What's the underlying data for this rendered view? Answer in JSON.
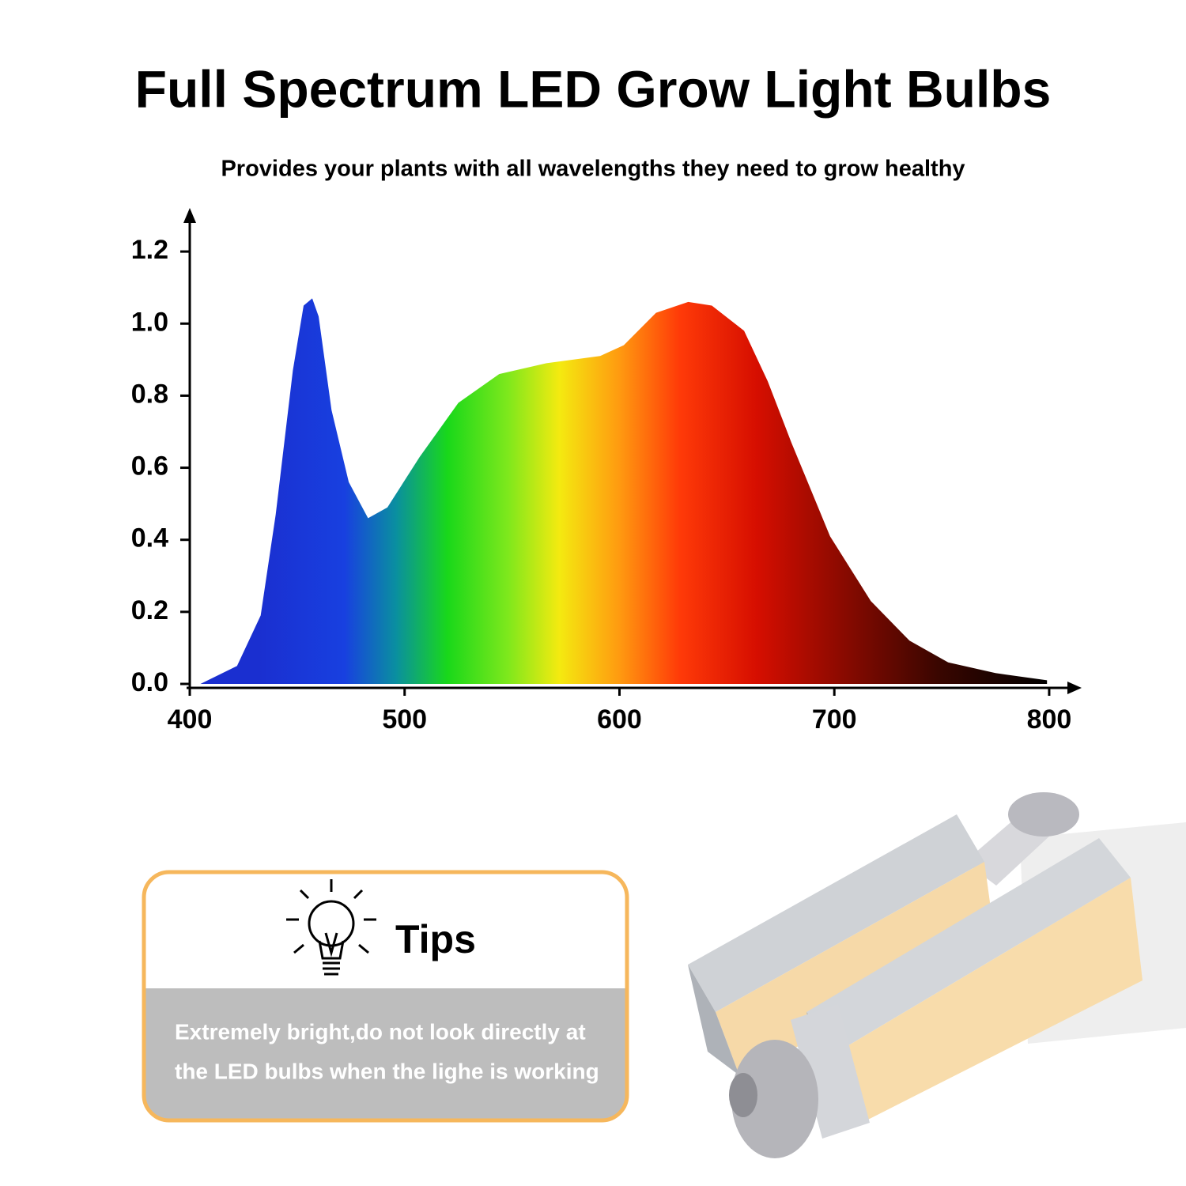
{
  "chart_data": {
    "type": "area",
    "title": "Full Spectrum LED Grow Light Bulbs",
    "subtitle": "Provides your plants with all wavelengths they need to grow healthy",
    "x": [
      405,
      422,
      433,
      440,
      448,
      453,
      457,
      460,
      466,
      474,
      483,
      492,
      507,
      525,
      544,
      566,
      591,
      602,
      617,
      632,
      643,
      658,
      669,
      680,
      698,
      717,
      735,
      753,
      775,
      799
    ],
    "values": [
      0,
      0.05,
      0.19,
      0.47,
      0.87,
      1.05,
      1.07,
      1.02,
      0.76,
      0.56,
      0.46,
      0.49,
      0.63,
      0.78,
      0.86,
      0.89,
      0.91,
      0.94,
      1.03,
      1.06,
      1.05,
      0.98,
      0.84,
      0.67,
      0.41,
      0.23,
      0.12,
      0.06,
      0.03,
      0.01
    ],
    "xlim": [
      400,
      814
    ],
    "ylim": [
      0,
      1.31
    ],
    "xticks": [
      400,
      500,
      600,
      700,
      800
    ],
    "yticks": [
      {
        "value": 0,
        "label": "0.0"
      },
      0.2,
      0.4,
      0.6,
      0.8,
      {
        "value": 1,
        "label": "1.0"
      },
      1.2
    ]
  },
  "tips": {
    "heading": "Tips",
    "lines": [
      "Extremely bright,do not look directly at",
      "the LED bulbs when the lighe is working"
    ]
  }
}
